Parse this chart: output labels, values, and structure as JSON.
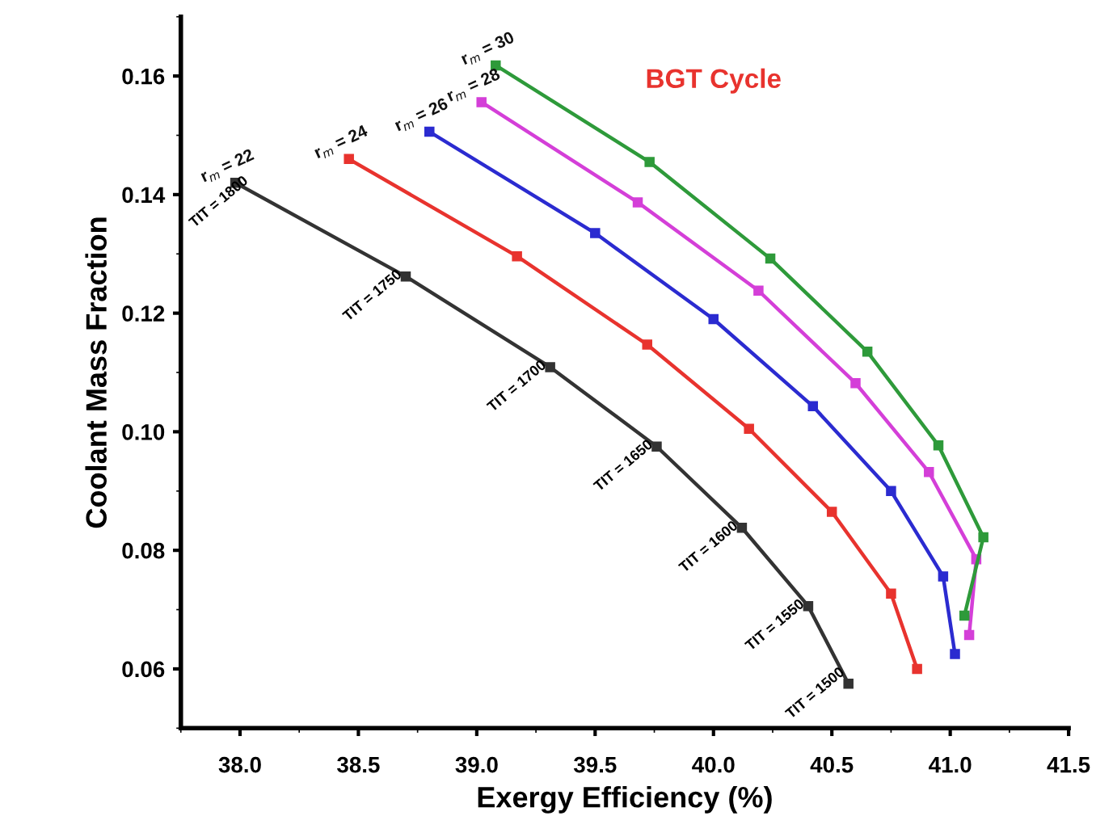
{
  "chart_data": {
    "type": "line",
    "title": "BGT Cycle",
    "xlabel": "Exergy Efficiency (%)",
    "ylabel": "Coolant Mass Fraction",
    "xlim": [
      37.75,
      41.5
    ],
    "ylim": [
      0.05,
      0.17
    ],
    "xticks": [
      {
        "value": 38,
        "label": "38.0"
      },
      {
        "value": 38.5,
        "label": "38.5"
      },
      {
        "value": 39,
        "label": "39.0"
      },
      {
        "value": 39.5,
        "label": "39.5"
      },
      {
        "value": 40,
        "label": "40.0"
      },
      {
        "value": 40.5,
        "label": "40.5"
      },
      {
        "value": 41,
        "label": "41.0"
      },
      {
        "value": 41.5,
        "label": "41.5"
      }
    ],
    "yticks": [
      {
        "value": 0.06,
        "label": "0.06"
      },
      {
        "value": 0.08,
        "label": "0.08"
      },
      {
        "value": 0.1,
        "label": "0.10"
      },
      {
        "value": 0.12,
        "label": "0.12"
      },
      {
        "value": 0.14,
        "label": "0.14"
      },
      {
        "value": 0.16,
        "label": "0.16"
      }
    ],
    "marker": "square",
    "line_style": "solid",
    "grid": false,
    "legend": false,
    "series": [
      {
        "name": "r$_{m}$ = 22",
        "color": "#333333",
        "x": [
          37.98,
          38.7,
          39.31,
          39.76,
          40.12,
          40.4,
          40.57
        ],
        "values": [
          0.142,
          0.1262,
          0.1109,
          0.0975,
          0.0838,
          0.0706,
          0.0575
        ]
      },
      {
        "name": "r$_{m}$ = 24",
        "color": "#e8332e",
        "x": [
          38.46,
          39.17,
          39.72,
          40.15,
          40.5,
          40.75,
          40.86
        ],
        "values": [
          0.146,
          0.1296,
          0.1147,
          0.1005,
          0.0865,
          0.0727,
          0.06
        ]
      },
      {
        "name": "r$_{m}$ = 26",
        "color": "#2b2bd0",
        "x": [
          38.8,
          39.5,
          40.0,
          40.42,
          40.75,
          40.97,
          41.02
        ],
        "values": [
          0.1506,
          0.1335,
          0.119,
          0.1043,
          0.09,
          0.0756,
          0.0625
        ]
      },
      {
        "name": "r$_{m}$ = 28",
        "color": "#d43fd8",
        "x": [
          39.02,
          39.68,
          40.19,
          40.6,
          40.91,
          41.11,
          41.08
        ],
        "values": [
          0.1556,
          0.1387,
          0.1238,
          0.1082,
          0.0932,
          0.0785,
          0.0657
        ]
      },
      {
        "name": "r$_{m}$ = 30",
        "color": "#2e9a3a",
        "x": [
          39.08,
          39.73,
          40.24,
          40.65,
          40.95,
          41.14,
          41.06
        ],
        "values": [
          0.1618,
          0.1455,
          0.1292,
          0.1135,
          0.0977,
          0.0822,
          0.069
        ]
      }
    ],
    "annotations": [
      {
        "text": "TIT = 1800",
        "x": 37.98,
        "y": 0.142
      },
      {
        "text": "TIT = 1750",
        "x": 38.7,
        "y": 0.1262
      },
      {
        "text": "TIT = 1700",
        "x": 39.31,
        "y": 0.1109
      },
      {
        "text": "TIT = 1650",
        "x": 39.76,
        "y": 0.0975
      },
      {
        "text": "TIT = 1600",
        "x": 40.12,
        "y": 0.0838
      },
      {
        "text": "TIT = 1550",
        "x": 40.4,
        "y": 0.0706
      },
      {
        "text": "TIT = 1500",
        "x": 40.57,
        "y": 0.0575
      }
    ]
  }
}
